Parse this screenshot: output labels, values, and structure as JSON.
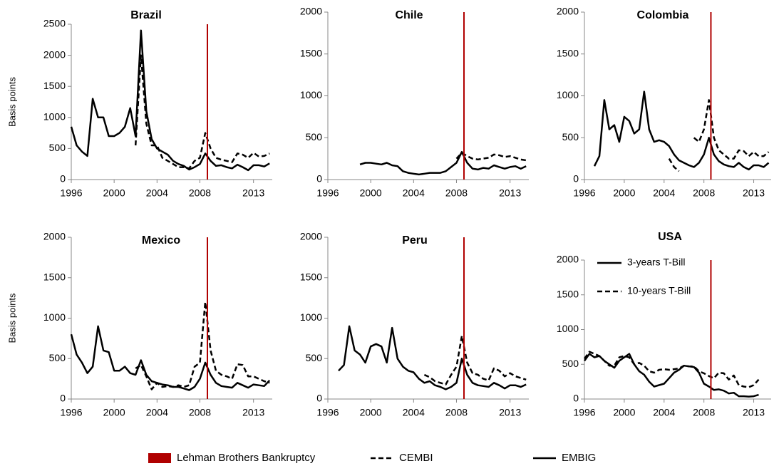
{
  "chart_data": [
    {
      "type": "line",
      "title": "Brazil",
      "ylabel": "Basis points",
      "x": [
        1996,
        1996.5,
        1997,
        1997.5,
        1998,
        1998.5,
        1999,
        1999.5,
        2000,
        2000.5,
        2001,
        2001.5,
        2002,
        2002.5,
        2003,
        2003.5,
        2004,
        2004.5,
        2005,
        2005.5,
        2006,
        2006.5,
        2007,
        2007.5,
        2008,
        2008.5,
        2009,
        2009.5,
        2010,
        2010.5,
        2011,
        2011.5,
        2012,
        2012.5,
        2013,
        2013.5,
        2014,
        2014.5
      ],
      "series": [
        {
          "dash": false,
          "color": "#000000",
          "values": [
            850,
            550,
            450,
            380,
            1300,
            1000,
            1000,
            700,
            700,
            750,
            850,
            1150,
            700,
            2400,
            1100,
            650,
            500,
            450,
            400,
            300,
            250,
            220,
            160,
            200,
            250,
            420,
            300,
            220,
            230,
            200,
            180,
            240,
            200,
            150,
            230,
            230,
            210,
            260
          ]
        },
        {
          "dash": true,
          "color": "#000000",
          "values": [
            null,
            null,
            null,
            null,
            null,
            null,
            null,
            null,
            null,
            null,
            null,
            null,
            550,
            2000,
            900,
            550,
            550,
            350,
            300,
            250,
            200,
            200,
            180,
            300,
            350,
            750,
            500,
            350,
            320,
            300,
            280,
            420,
            400,
            350,
            430,
            370,
            380,
            420
          ]
        }
      ],
      "xlim": [
        1996,
        2014.75
      ],
      "xticks": [
        1996,
        2000,
        2004,
        2008,
        2013
      ],
      "ylim": [
        0,
        2500
      ],
      "yticks": [
        0,
        500,
        1000,
        1500,
        2000,
        2500
      ]
    },
    {
      "type": "line",
      "title": "Chile",
      "x": [
        1996,
        1996.5,
        1997,
        1997.5,
        1998,
        1998.5,
        1999,
        1999.5,
        2000,
        2000.5,
        2001,
        2001.5,
        2002,
        2002.5,
        2003,
        2003.5,
        2004,
        2004.5,
        2005,
        2005.5,
        2006,
        2006.5,
        2007,
        2007.5,
        2008,
        2008.5,
        2009,
        2009.5,
        2010,
        2010.5,
        2011,
        2011.5,
        2012,
        2012.5,
        2013,
        2013.5,
        2014,
        2014.5
      ],
      "series": [
        {
          "dash": false,
          "color": "#000000",
          "values": [
            null,
            null,
            null,
            null,
            null,
            null,
            180,
            200,
            200,
            190,
            180,
            200,
            170,
            160,
            100,
            80,
            70,
            60,
            70,
            80,
            80,
            80,
            100,
            150,
            200,
            330,
            200,
            130,
            120,
            140,
            130,
            170,
            150,
            130,
            150,
            160,
            130,
            160
          ]
        },
        {
          "dash": true,
          "color": "#000000",
          "values": [
            null,
            null,
            null,
            null,
            null,
            null,
            null,
            null,
            null,
            null,
            null,
            null,
            null,
            null,
            null,
            null,
            null,
            null,
            null,
            null,
            null,
            null,
            null,
            null,
            250,
            320,
            280,
            250,
            240,
            250,
            260,
            300,
            290,
            270,
            280,
            260,
            240,
            230
          ]
        }
      ],
      "xlim": [
        1996,
        2014.75
      ],
      "xticks": [
        1996,
        2000,
        2004,
        2008,
        2013
      ],
      "ylim": [
        0,
        2000
      ],
      "yticks": [
        0,
        500,
        1000,
        1500,
        2000
      ]
    },
    {
      "type": "line",
      "title": "Colombia",
      "x": [
        1996,
        1996.5,
        1997,
        1997.5,
        1998,
        1998.5,
        1999,
        1999.5,
        2000,
        2000.5,
        2001,
        2001.5,
        2002,
        2002.5,
        2003,
        2003.5,
        2004,
        2004.5,
        2005,
        2005.5,
        2006,
        2006.5,
        2007,
        2007.5,
        2008,
        2008.5,
        2009,
        2009.5,
        2010,
        2010.5,
        2011,
        2011.5,
        2012,
        2012.5,
        2013,
        2013.5,
        2014,
        2014.5
      ],
      "series": [
        {
          "dash": false,
          "color": "#000000",
          "values": [
            null,
            null,
            160,
            280,
            950,
            600,
            650,
            450,
            750,
            700,
            550,
            600,
            1050,
            600,
            450,
            470,
            450,
            400,
            300,
            230,
            200,
            170,
            150,
            200,
            300,
            500,
            300,
            220,
            180,
            160,
            150,
            200,
            150,
            120,
            170,
            170,
            150,
            200
          ]
        },
        {
          "dash": true,
          "color": "#000000",
          "values": [
            null,
            null,
            null,
            null,
            null,
            null,
            null,
            null,
            null,
            null,
            null,
            null,
            null,
            null,
            null,
            null,
            null,
            250,
            150,
            100,
            null,
            null,
            500,
            450,
            600,
            950,
            500,
            350,
            300,
            250,
            250,
            350,
            340,
            280,
            330,
            280,
            280,
            330
          ]
        }
      ],
      "xlim": [
        1996,
        2014.75
      ],
      "xticks": [
        1996,
        2000,
        2004,
        2008,
        2013
      ],
      "ylim": [
        0,
        2000
      ],
      "yticks": [
        0,
        500,
        1000,
        1500,
        2000
      ]
    },
    {
      "type": "line",
      "title": "Mexico",
      "ylabel": "Basis points",
      "x": [
        1996,
        1996.5,
        1997,
        1997.5,
        1998,
        1998.5,
        1999,
        1999.5,
        2000,
        2000.5,
        2001,
        2001.5,
        2002,
        2002.5,
        2003,
        2003.5,
        2004,
        2004.5,
        2005,
        2005.5,
        2006,
        2006.5,
        2007,
        2007.5,
        2008,
        2008.5,
        2009,
        2009.5,
        2010,
        2010.5,
        2011,
        2011.5,
        2012,
        2012.5,
        2013,
        2013.5,
        2014,
        2014.5
      ],
      "series": [
        {
          "dash": false,
          "color": "#000000",
          "values": [
            800,
            550,
            450,
            320,
            400,
            900,
            600,
            580,
            350,
            350,
            400,
            320,
            300,
            480,
            300,
            220,
            200,
            180,
            170,
            150,
            150,
            130,
            110,
            150,
            250,
            450,
            300,
            200,
            160,
            150,
            140,
            200,
            170,
            140,
            180,
            170,
            160,
            230
          ]
        },
        {
          "dash": true,
          "color": "#000000",
          "values": [
            null,
            null,
            null,
            null,
            null,
            null,
            null,
            null,
            null,
            null,
            null,
            null,
            380,
            420,
            280,
            120,
            200,
            150,
            160,
            150,
            170,
            150,
            170,
            400,
            450,
            1200,
            600,
            350,
            300,
            280,
            250,
            430,
            420,
            280,
            280,
            250,
            220,
            200
          ]
        }
      ],
      "xlim": [
        1996,
        2014.75
      ],
      "xticks": [
        1996,
        2000,
        2004,
        2008,
        2013
      ],
      "ylim": [
        0,
        2000
      ],
      "yticks": [
        0,
        500,
        1000,
        1500,
        2000
      ]
    },
    {
      "type": "line",
      "title": "Peru",
      "x": [
        1996,
        1996.5,
        1997,
        1997.5,
        1998,
        1998.5,
        1999,
        1999.5,
        2000,
        2000.5,
        2001,
        2001.5,
        2002,
        2002.5,
        2003,
        2003.5,
        2004,
        2004.5,
        2005,
        2005.5,
        2006,
        2006.5,
        2007,
        2007.5,
        2008,
        2008.5,
        2009,
        2009.5,
        2010,
        2010.5,
        2011,
        2011.5,
        2012,
        2012.5,
        2013,
        2013.5,
        2014,
        2014.5
      ],
      "series": [
        {
          "dash": false,
          "color": "#000000",
          "values": [
            null,
            null,
            350,
            420,
            900,
            600,
            550,
            450,
            650,
            680,
            650,
            450,
            880,
            500,
            400,
            350,
            330,
            250,
            200,
            220,
            170,
            150,
            120,
            150,
            200,
            500,
            300,
            200,
            170,
            160,
            150,
            200,
            170,
            130,
            170,
            170,
            150,
            180
          ]
        },
        {
          "dash": true,
          "color": "#000000",
          "values": [
            null,
            null,
            null,
            null,
            null,
            null,
            null,
            null,
            null,
            null,
            null,
            null,
            null,
            null,
            null,
            null,
            null,
            null,
            300,
            270,
            220,
            200,
            180,
            300,
            400,
            780,
            450,
            320,
            300,
            250,
            230,
            380,
            350,
            280,
            320,
            280,
            260,
            240
          ]
        }
      ],
      "xlim": [
        1996,
        2014.75
      ],
      "xticks": [
        1996,
        2000,
        2004,
        2008,
        2013
      ],
      "ylim": [
        0,
        2000
      ],
      "yticks": [
        0,
        500,
        1000,
        1500,
        2000
      ]
    },
    {
      "type": "line",
      "title": "USA",
      "x": [
        1996,
        1996.5,
        1997,
        1997.5,
        1998,
        1998.5,
        1999,
        1999.5,
        2000,
        2000.5,
        2001,
        2001.5,
        2002,
        2002.5,
        2003,
        2003.5,
        2004,
        2004.5,
        2005,
        2005.5,
        2006,
        2006.5,
        2007,
        2007.5,
        2008,
        2008.5,
        2009,
        2009.5,
        2010,
        2010.5,
        2011,
        2011.5,
        2012,
        2012.5,
        2013,
        2013.5,
        2014,
        2014.5
      ],
      "series": [
        {
          "name": "3-years T-Bill",
          "dash": false,
          "color": "#000000",
          "values": [
            550,
            650,
            600,
            620,
            550,
            500,
            450,
            550,
            600,
            650,
            500,
            400,
            350,
            250,
            180,
            200,
            220,
            300,
            380,
            420,
            480,
            470,
            460,
            380,
            220,
            180,
            130,
            140,
            120,
            80,
            90,
            40,
            40,
            35,
            40,
            60,
            null,
            null
          ]
        },
        {
          "name": "10-years T-Bill",
          "dash": true,
          "color": "#000000",
          "values": [
            580,
            680,
            650,
            620,
            550,
            480,
            480,
            600,
            620,
            600,
            500,
            520,
            480,
            400,
            380,
            420,
            430,
            420,
            430,
            440,
            480,
            470,
            470,
            400,
            370,
            330,
            300,
            380,
            370,
            280,
            340,
            200,
            180,
            170,
            200,
            280,
            null,
            null
          ]
        }
      ],
      "xlim": [
        1996,
        2014.75
      ],
      "xticks": [
        1996,
        2000,
        2004,
        2008,
        2013
      ],
      "ylim": [
        0,
        2000
      ],
      "yticks": [
        0,
        500,
        1000,
        1500,
        2000
      ]
    }
  ],
  "event": {
    "label": "Lehman Brothers Bankruptcy",
    "x": 2008.7,
    "color": "#b00000"
  },
  "legend": [
    {
      "label": "CEMBI",
      "dash": true
    },
    {
      "label": "EMBIG",
      "dash": false
    }
  ]
}
